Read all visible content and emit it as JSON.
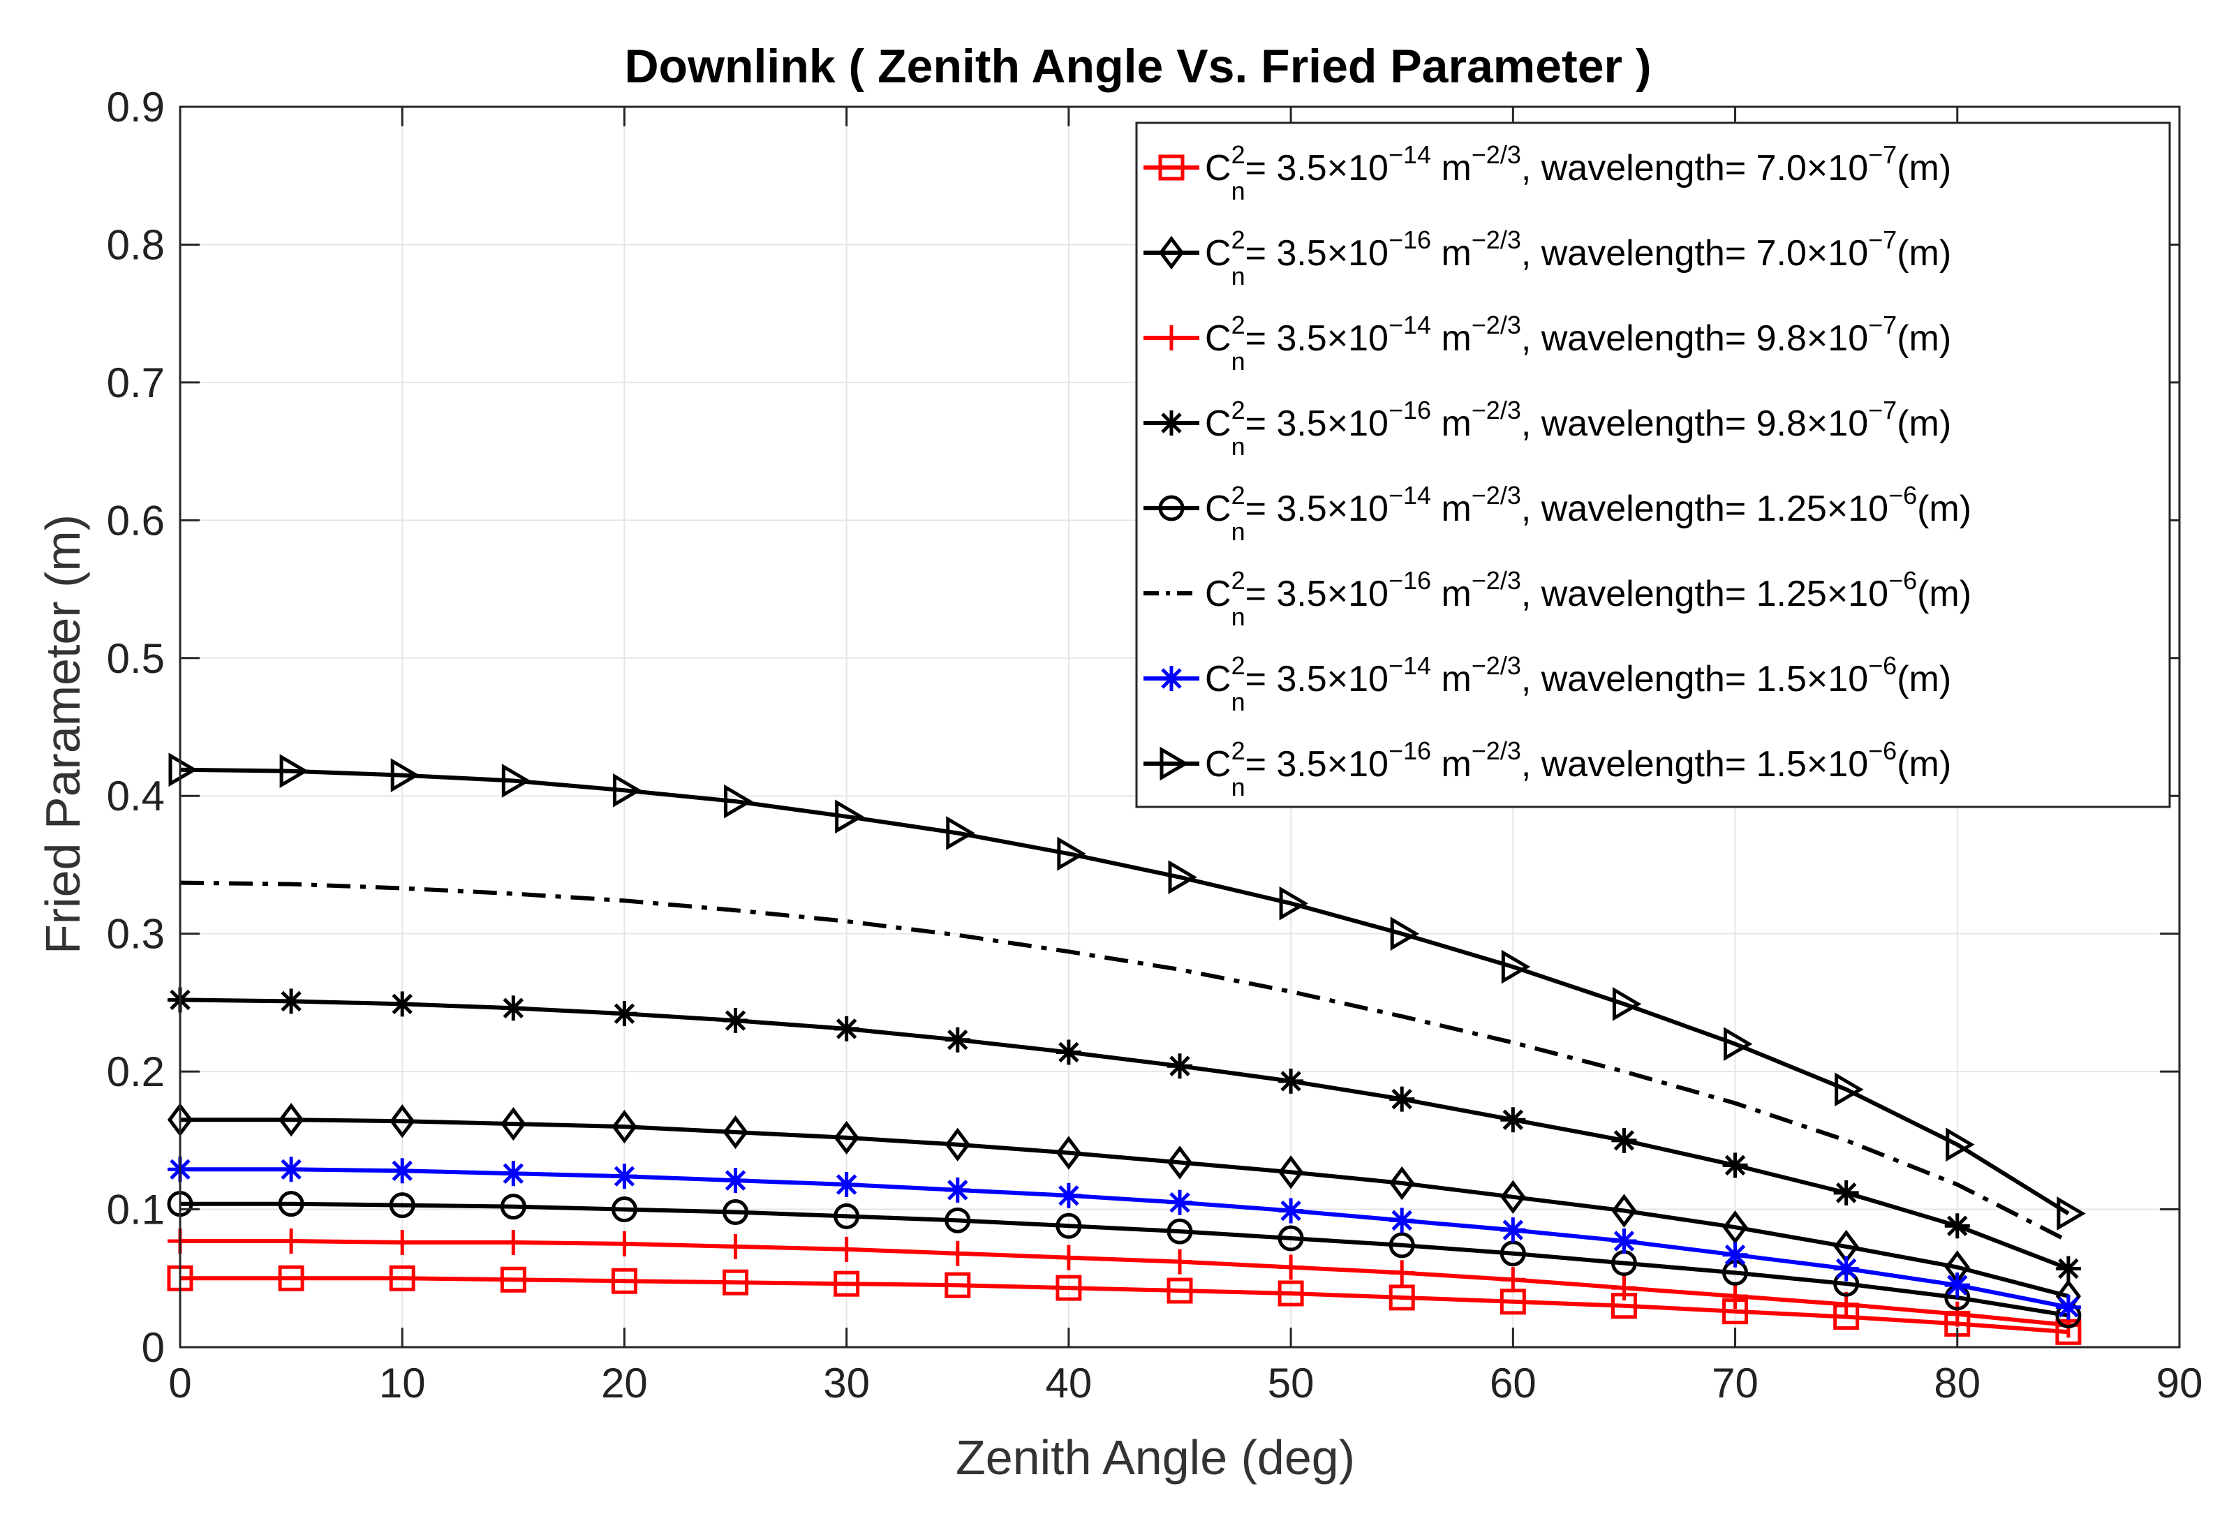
{
  "chart_data": {
    "type": "line",
    "title": "Downlink ( Zenith Angle Vs. Fried Parameter )",
    "xlabel": "Zenith Angle (deg)",
    "ylabel": "Fried Parameter (m)",
    "xlim": [
      0,
      90
    ],
    "ylim": [
      0,
      0.9
    ],
    "x_ticks": [
      0,
      10,
      20,
      30,
      40,
      50,
      60,
      70,
      80,
      90
    ],
    "y_ticks": [
      0,
      0.1,
      0.2,
      0.3,
      0.4,
      0.5,
      0.6,
      0.7,
      0.8,
      0.9
    ],
    "x_tick_labels": [
      "0",
      "10",
      "20",
      "30",
      "40",
      "50",
      "60",
      "70",
      "80",
      "90"
    ],
    "y_tick_labels": [
      "0",
      "0.1",
      "0.2",
      "0.3",
      "0.4",
      "0.5",
      "0.6",
      "0.7",
      "0.8",
      "0.9"
    ],
    "grid": true,
    "legend_position": "top-right",
    "x": [
      0,
      5,
      10,
      15,
      20,
      25,
      30,
      35,
      40,
      45,
      50,
      55,
      60,
      65,
      70,
      75,
      80,
      85
    ],
    "series": [
      {
        "name": "C_n^2= 3.5×10^-14 m^-2/3, wavelength= 7.0×10^-7(m)",
        "cn_exp": "−14",
        "wl_mant": "7.0",
        "wl_exp": "−7",
        "color": "#ff0000",
        "marker": "square",
        "dash": "solid",
        "values": [
          0.05,
          0.05,
          0.05,
          0.049,
          0.048,
          0.047,
          0.046,
          0.045,
          0.043,
          0.041,
          0.039,
          0.036,
          0.033,
          0.03,
          0.026,
          0.022,
          0.017,
          0.011
        ]
      },
      {
        "name": "C_n^2= 3.5×10^-16 m^-2/3, wavelength= 7.0×10^-7(m)",
        "cn_exp": "−16",
        "wl_mant": "7.0",
        "wl_exp": "−7",
        "color": "#000000",
        "marker": "diamond",
        "dash": "solid",
        "values": [
          0.165,
          0.165,
          0.164,
          0.162,
          0.16,
          0.156,
          0.152,
          0.147,
          0.141,
          0.134,
          0.127,
          0.119,
          0.109,
          0.099,
          0.087,
          0.073,
          0.058,
          0.037
        ]
      },
      {
        "name": "C_n^2= 3.5×10^-14 m^-2/3, wavelength= 9.8×10^-7(m)",
        "cn_exp": "−14",
        "wl_mant": "9.8",
        "wl_exp": "−7",
        "color": "#ff0000",
        "marker": "plus",
        "dash": "solid",
        "values": [
          0.077,
          0.077,
          0.076,
          0.076,
          0.075,
          0.073,
          0.071,
          0.068,
          0.065,
          0.062,
          0.058,
          0.054,
          0.049,
          0.043,
          0.037,
          0.031,
          0.024,
          0.016
        ]
      },
      {
        "name": "C_n^2= 3.5×10^-16 m^-2/3, wavelength= 9.8×10^-7(m)",
        "cn_exp": "−16",
        "wl_mant": "9.8",
        "wl_exp": "−7",
        "color": "#000000",
        "marker": "star",
        "dash": "solid",
        "values": [
          0.252,
          0.251,
          0.249,
          0.246,
          0.242,
          0.237,
          0.231,
          0.223,
          0.214,
          0.204,
          0.193,
          0.18,
          0.165,
          0.15,
          0.132,
          0.112,
          0.088,
          0.057
        ]
      },
      {
        "name": "C_n^2= 3.5×10^-14 m^-2/3, wavelength= 1.25×10^-6(m)",
        "cn_exp": "−14",
        "wl_mant": "1.25",
        "wl_exp": "−6",
        "color": "#000000",
        "marker": "circle",
        "dash": "solid",
        "values": [
          0.104,
          0.104,
          0.103,
          0.102,
          0.1,
          0.098,
          0.095,
          0.092,
          0.088,
          0.084,
          0.079,
          0.074,
          0.068,
          0.061,
          0.054,
          0.046,
          0.036,
          0.023
        ]
      },
      {
        "name": "C_n^2= 3.5×10^-16 m^-2/3, wavelength= 1.25×10^-6(m)",
        "cn_exp": "−16",
        "wl_mant": "1.25",
        "wl_exp": "−6",
        "color": "#000000",
        "marker": "none",
        "dash": "dashdot",
        "values": [
          0.337,
          0.336,
          0.333,
          0.329,
          0.324,
          0.317,
          0.309,
          0.299,
          0.287,
          0.274,
          0.258,
          0.24,
          0.221,
          0.2,
          0.177,
          0.15,
          0.118,
          0.077
        ]
      },
      {
        "name": "C_n^2= 3.5×10^-14 m^-2/3, wavelength= 1.5×10^-6(m)",
        "cn_exp": "−14",
        "wl_mant": "1.5",
        "wl_exp": "−6",
        "color": "#0000ff",
        "marker": "star",
        "dash": "solid",
        "values": [
          0.129,
          0.129,
          0.128,
          0.126,
          0.124,
          0.121,
          0.118,
          0.114,
          0.11,
          0.105,
          0.099,
          0.092,
          0.085,
          0.077,
          0.067,
          0.057,
          0.045,
          0.029
        ]
      },
      {
        "name": "C_n^2= 3.5×10^-16 m^-2/3, wavelength= 1.5×10^-6(m)",
        "cn_exp": "−16",
        "wl_mant": "1.5",
        "wl_exp": "−6",
        "color": "#000000",
        "marker": "triangle-right",
        "dash": "solid",
        "values": [
          0.419,
          0.418,
          0.415,
          0.411,
          0.404,
          0.396,
          0.385,
          0.373,
          0.358,
          0.341,
          0.322,
          0.3,
          0.276,
          0.249,
          0.22,
          0.187,
          0.147,
          0.097
        ]
      }
    ]
  }
}
